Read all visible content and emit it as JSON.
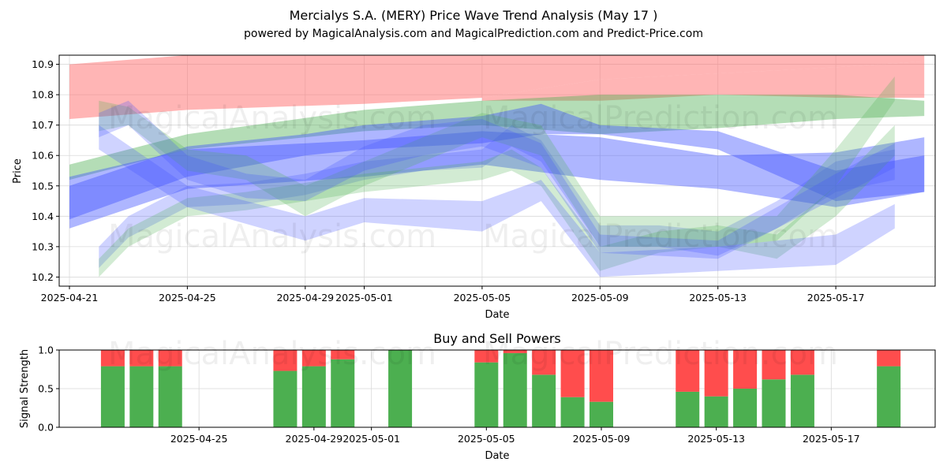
{
  "header": {
    "title": "Mercialys S.A. (MERY) Price Wave Trend Analysis (May 17 )",
    "subtitle": "powered by MagicalAnalysis.com and MagicalPrediction.com and Predict-Price.com"
  },
  "watermarks": [
    "MagicalAnalysis.com",
    "MagicalPrediction.com"
  ],
  "colors": {
    "red_band": "#ff6b6b",
    "green_band": "#4caf50",
    "blue_band": "#3f51ff",
    "buy": "#4caf50",
    "sell": "#ff4d4d",
    "grid": "#d9d9d9"
  },
  "chart_data": [
    {
      "type": "area",
      "title": "",
      "xlabel": "Date",
      "ylabel": "Price",
      "ylim": [
        10.17,
        10.93
      ],
      "yticks": [
        10.2,
        10.3,
        10.4,
        10.5,
        10.6,
        10.7,
        10.8,
        10.9
      ],
      "xticks": [
        "2025-04-21",
        "2025-04-25",
        "2025-04-29",
        "2025-05-01",
        "2025-05-05",
        "2025-05-09",
        "2025-05-13",
        "2025-05-17"
      ],
      "x_range": [
        "2025-04-21",
        "2025-05-20"
      ],
      "grid": true,
      "series": [
        {
          "color": "red",
          "x": [
            "2025-04-21",
            "2025-04-25",
            "2025-05-01",
            "2025-05-05",
            "2025-05-09",
            "2025-05-13",
            "2025-05-17",
            "2025-05-20"
          ],
          "lower": [
            10.72,
            10.75,
            10.77,
            10.79,
            10.85,
            10.87,
            10.89,
            10.91
          ],
          "upper": [
            10.9,
            10.96,
            10.97,
            10.97,
            10.97,
            10.97,
            10.97,
            10.97
          ]
        },
        {
          "color": "red",
          "x": [
            "2025-05-05",
            "2025-05-09",
            "2025-05-13",
            "2025-05-17",
            "2025-05-20"
          ],
          "lower": [
            10.78,
            10.78,
            10.8,
            10.79,
            10.79
          ],
          "upper": [
            10.79,
            10.85,
            10.87,
            10.89,
            10.91
          ]
        },
        {
          "color": "green",
          "x": [
            "2025-04-21",
            "2025-04-25",
            "2025-05-01",
            "2025-05-05",
            "2025-05-09",
            "2025-05-13",
            "2025-05-17",
            "2025-05-20"
          ],
          "lower": [
            10.52,
            10.62,
            10.68,
            10.7,
            10.67,
            10.69,
            10.72,
            10.73
          ],
          "upper": [
            10.57,
            10.67,
            10.75,
            10.78,
            10.8,
            10.8,
            10.8,
            10.78
          ]
        },
        {
          "color": "blue",
          "x": [
            "2025-04-21",
            "2025-04-25",
            "2025-05-01",
            "2025-05-05",
            "2025-05-09",
            "2025-05-13",
            "2025-05-17",
            "2025-05-20"
          ],
          "lower": [
            10.36,
            10.49,
            10.53,
            10.57,
            10.52,
            10.49,
            10.43,
            10.48
          ],
          "upper": [
            10.53,
            10.62,
            10.65,
            10.68,
            10.66,
            10.6,
            10.61,
            10.66
          ]
        },
        {
          "color": "blue",
          "x": [
            "2025-04-21",
            "2025-04-25",
            "2025-04-29",
            "2025-05-01",
            "2025-05-05",
            "2025-05-07",
            "2025-05-09",
            "2025-05-13",
            "2025-05-17",
            "2025-05-20"
          ],
          "lower": [
            10.39,
            10.53,
            10.6,
            10.62,
            10.64,
            10.67,
            10.67,
            10.62,
            10.45,
            10.48
          ],
          "upper": [
            10.5,
            10.63,
            10.67,
            10.7,
            10.73,
            10.77,
            10.7,
            10.68,
            10.55,
            10.6
          ]
        },
        {
          "color": "blue",
          "x": [
            "2025-04-22",
            "2025-04-23",
            "2025-04-25",
            "2025-04-27",
            "2025-04-29",
            "2025-05-01",
            "2025-05-03",
            "2025-05-05",
            "2025-05-06",
            "2025-05-07",
            "2025-05-09",
            "2025-05-11",
            "2025-05-13",
            "2025-05-15",
            "2025-05-17",
            "2025-05-19"
          ],
          "lower": [
            10.23,
            10.33,
            10.43,
            10.44,
            10.47,
            10.52,
            10.55,
            10.56,
            10.63,
            10.58,
            10.3,
            10.3,
            10.27,
            10.36,
            10.48,
            10.52
          ],
          "upper": [
            10.3,
            10.4,
            10.5,
            10.51,
            10.54,
            10.58,
            10.6,
            10.62,
            10.7,
            10.65,
            10.37,
            10.37,
            10.35,
            10.45,
            10.58,
            10.62
          ]
        },
        {
          "color": "green",
          "x": [
            "2025-04-22",
            "2025-04-23",
            "2025-04-25",
            "2025-04-27",
            "2025-04-29",
            "2025-05-01",
            "2025-05-03",
            "2025-05-05",
            "2025-05-06",
            "2025-05-07",
            "2025-05-09",
            "2025-05-11",
            "2025-05-13",
            "2025-05-15",
            "2025-05-17",
            "2025-05-19"
          ],
          "lower": [
            10.2,
            10.3,
            10.4,
            10.42,
            10.45,
            10.48,
            10.5,
            10.52,
            10.55,
            10.5,
            10.22,
            10.28,
            10.3,
            10.26,
            10.4,
            10.6
          ],
          "upper": [
            10.26,
            10.36,
            10.46,
            10.48,
            10.51,
            10.54,
            10.56,
            10.58,
            10.62,
            10.56,
            10.3,
            10.35,
            10.37,
            10.34,
            10.5,
            10.7
          ]
        },
        {
          "color": "green",
          "x": [
            "2025-04-22",
            "2025-04-23",
            "2025-04-25",
            "2025-04-27",
            "2025-04-29",
            "2025-05-01",
            "2025-05-05",
            "2025-05-07",
            "2025-05-09",
            "2025-05-13",
            "2025-05-15",
            "2025-05-17",
            "2025-05-19"
          ],
          "lower": [
            10.68,
            10.7,
            10.55,
            10.52,
            10.4,
            10.5,
            10.66,
            10.6,
            10.3,
            10.3,
            10.32,
            10.5,
            10.78
          ],
          "upper": [
            10.78,
            10.76,
            10.62,
            10.6,
            10.5,
            10.58,
            10.74,
            10.7,
            10.4,
            10.4,
            10.4,
            10.62,
            10.86
          ]
        },
        {
          "color": "blue",
          "x": [
            "2025-04-22",
            "2025-04-23",
            "2025-04-25",
            "2025-04-27",
            "2025-04-29",
            "2025-05-01",
            "2025-05-03",
            "2025-05-05",
            "2025-05-07",
            "2025-05-09",
            "2025-05-13",
            "2025-05-17",
            "2025-05-19"
          ],
          "lower": [
            10.66,
            10.7,
            10.52,
            10.46,
            10.45,
            10.55,
            10.6,
            10.63,
            10.56,
            10.28,
            10.26,
            10.46,
            10.56
          ],
          "upper": [
            10.74,
            10.78,
            10.6,
            10.54,
            10.52,
            10.63,
            10.7,
            10.72,
            10.64,
            10.34,
            10.32,
            10.54,
            10.64
          ]
        },
        {
          "color": "blue",
          "x": [
            "2025-04-22",
            "2025-04-25",
            "2025-04-29",
            "2025-05-01",
            "2025-05-05",
            "2025-05-07",
            "2025-05-09",
            "2025-05-13",
            "2025-05-17",
            "2025-05-19"
          ],
          "lower": [
            10.62,
            10.43,
            10.32,
            10.38,
            10.35,
            10.45,
            10.2,
            10.22,
            10.24,
            10.36
          ],
          "upper": [
            10.7,
            10.5,
            10.4,
            10.46,
            10.45,
            10.52,
            10.28,
            10.3,
            10.34,
            10.44
          ]
        }
      ]
    },
    {
      "type": "bar",
      "title": "Buy and Sell Powers",
      "xlabel": "Date",
      "ylabel": "Signal Strength",
      "ylim": [
        0,
        1
      ],
      "yticks": [
        0.0,
        0.5,
        1.0
      ],
      "xticks": [
        "2025-04-25",
        "2025-04-29",
        "2025-05-01",
        "2025-05-05",
        "2025-05-09",
        "2025-05-13",
        "2025-05-17"
      ],
      "grid": true,
      "categories": [
        "2025-04-22",
        "2025-04-23",
        "2025-04-24",
        "2025-04-28",
        "2025-04-29",
        "2025-04-30",
        "2025-05-02",
        "2025-05-05",
        "2025-05-06",
        "2025-05-07",
        "2025-05-08",
        "2025-05-09",
        "2025-05-12",
        "2025-05-13",
        "2025-05-14",
        "2025-05-15",
        "2025-05-16",
        "2025-05-19"
      ],
      "series": [
        {
          "values": [
            0.79,
            0.79,
            0.79,
            0.73,
            0.79,
            0.88,
            1.0,
            0.84,
            0.96,
            0.68,
            0.39,
            0.33,
            0.46,
            0.4,
            0.5,
            0.62,
            0.68,
            0.79
          ]
        },
        {
          "values": [
            0.21,
            0.21,
            0.21,
            0.27,
            0.21,
            0.12,
            0.0,
            0.16,
            0.04,
            0.32,
            0.61,
            0.67,
            0.54,
            0.6,
            0.5,
            0.38,
            0.32,
            0.21
          ]
        }
      ]
    }
  ]
}
